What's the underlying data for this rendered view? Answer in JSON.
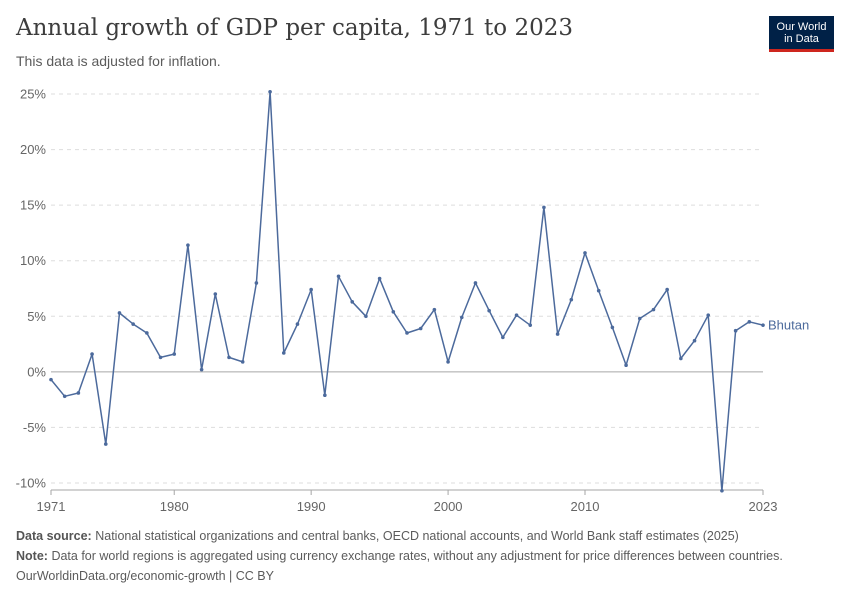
{
  "header": {
    "title": "Annual growth of GDP per capita, 1971 to 2023",
    "subtitle": "This data is adjusted for inflation."
  },
  "logo": {
    "line1": "Our World",
    "line2": "in Data"
  },
  "chart_data": {
    "type": "line",
    "xlim": [
      1971,
      2023
    ],
    "ylim": [
      -10,
      25
    ],
    "x_ticks": [
      1971,
      1980,
      1990,
      2000,
      2010,
      2023
    ],
    "y_ticks": [
      -10,
      -5,
      0,
      5,
      10,
      15,
      20,
      25
    ],
    "y_tick_labels": [
      "-10%",
      "-5%",
      "0%",
      "5%",
      "10%",
      "15%",
      "20%",
      "25%"
    ],
    "grid": "horizontal-dashed",
    "series": [
      {
        "name": "Bhutan",
        "color": "#4c6a9c",
        "x": [
          1971,
          1972,
          1973,
          1974,
          1975,
          1976,
          1977,
          1978,
          1979,
          1980,
          1981,
          1982,
          1983,
          1984,
          1985,
          1986,
          1987,
          1988,
          1989,
          1990,
          1991,
          1992,
          1993,
          1994,
          1995,
          1996,
          1997,
          1998,
          1999,
          2000,
          2001,
          2002,
          2003,
          2004,
          2005,
          2006,
          2007,
          2008,
          2009,
          2010,
          2011,
          2012,
          2013,
          2014,
          2015,
          2016,
          2017,
          2018,
          2019,
          2020,
          2021,
          2022,
          2023
        ],
        "values": [
          -0.7,
          -2.2,
          -1.9,
          1.6,
          -6.5,
          5.3,
          4.3,
          3.5,
          1.3,
          1.6,
          11.4,
          0.2,
          7.0,
          1.3,
          0.9,
          8.0,
          25.2,
          1.7,
          4.3,
          7.4,
          -2.1,
          8.6,
          6.3,
          5.0,
          8.4,
          5.4,
          3.5,
          3.9,
          5.6,
          0.9,
          4.9,
          8.0,
          5.5,
          3.1,
          5.1,
          4.2,
          14.8,
          3.4,
          6.5,
          10.7,
          7.3,
          4.0,
          0.6,
          4.8,
          5.6,
          7.4,
          1.2,
          2.8,
          5.1,
          -10.7,
          3.7,
          4.5,
          4.2
        ]
      }
    ]
  },
  "footer": {
    "source_label": "Data source:",
    "source_text": "National statistical organizations and central banks, OECD national accounts, and World Bank staff estimates (2025)",
    "note_label": "Note:",
    "note_text": "Data for world regions is aggregated using currency exchange rates, without any adjustment for price differences between countries.",
    "url": "OurWorldinData.org/economic-growth | CC BY"
  }
}
